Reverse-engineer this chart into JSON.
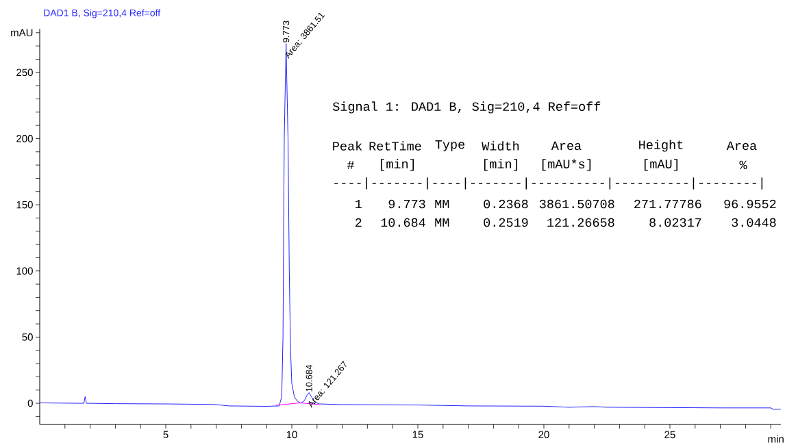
{
  "chart_data": {
    "type": "line",
    "title": "DAD1 B, Sig=210,4 Ref=off",
    "xlabel": "min",
    "xlim": [
      0,
      29.4
    ],
    "ylim": [
      -16,
      283
    ],
    "xticks": [
      {
        "value": 1,
        "label": null
      },
      {
        "value": 2,
        "label": null
      },
      {
        "value": 3,
        "label": null
      },
      {
        "value": 4,
        "label": null
      },
      5,
      {
        "value": 6,
        "label": null
      },
      {
        "value": 7,
        "label": null
      },
      {
        "value": 8,
        "label": null
      },
      {
        "value": 9,
        "label": null
      },
      10,
      {
        "value": 11,
        "label": null
      },
      {
        "value": 12,
        "label": null
      },
      {
        "value": 13,
        "label": null
      },
      {
        "value": 14,
        "label": null
      },
      15,
      {
        "value": 16,
        "label": null
      },
      {
        "value": 17,
        "label": null
      },
      {
        "value": 18,
        "label": null
      },
      {
        "value": 19,
        "label": null
      },
      20,
      {
        "value": 21,
        "label": null
      },
      {
        "value": 22,
        "label": null
      },
      {
        "value": 23,
        "label": null
      },
      {
        "value": 24,
        "label": null
      },
      25,
      {
        "value": 26,
        "label": null
      },
      {
        "value": 27,
        "label": null
      },
      {
        "value": 28,
        "label": null
      },
      {
        "value": 29,
        "label": null
      }
    ],
    "yticks": [
      {
        "value": -10,
        "label": null
      },
      0,
      {
        "value": 10,
        "label": null
      },
      {
        "value": 20,
        "label": null
      },
      {
        "value": 30,
        "label": null
      },
      {
        "value": 40,
        "label": null
      },
      50,
      {
        "value": 60,
        "label": null
      },
      {
        "value": 70,
        "label": null
      },
      {
        "value": 80,
        "label": null
      },
      {
        "value": 90,
        "label": null
      },
      100,
      {
        "value": 110,
        "label": null
      },
      {
        "value": 120,
        "label": null
      },
      {
        "value": 130,
        "label": null
      },
      {
        "value": 140,
        "label": null
      },
      150,
      {
        "value": 160,
        "label": null
      },
      {
        "value": 170,
        "label": null
      },
      {
        "value": 180,
        "label": null
      },
      {
        "value": 190,
        "label": null
      },
      200,
      {
        "value": 210,
        "label": null
      },
      {
        "value": 220,
        "label": null
      },
      {
        "value": 230,
        "label": null
      },
      {
        "value": 240,
        "label": null
      },
      250,
      {
        "value": 260,
        "label": null
      },
      {
        "value": 270,
        "label": null
      },
      {
        "value": 280,
        "label": "mAU"
      }
    ],
    "grid": false,
    "series": [
      {
        "color": "#2020ff",
        "x": [
          0,
          1.5,
          1.75,
          1.8,
          1.85,
          3,
          5,
          6.5,
          7,
          7.5,
          9,
          9.5,
          9.6,
          9.65,
          9.7,
          9.773,
          9.85,
          9.9,
          9.95,
          10.0,
          10.1,
          10.2,
          10.35,
          10.5,
          10.6,
          10.684,
          10.78,
          10.9,
          11.1,
          12,
          15,
          17,
          20,
          21,
          22,
          22.5,
          27,
          29,
          29.1,
          29.4
        ],
        "values": [
          0.3,
          0,
          0,
          5,
          0,
          -0.3,
          -0.5,
          -0.8,
          -1,
          -2,
          -2.3,
          -2,
          5,
          50,
          200,
          271.8,
          200,
          100,
          40,
          15,
          5,
          2,
          0,
          2,
          6,
          8,
          5,
          1,
          -0.5,
          -1,
          -1.3,
          -2,
          -2.2,
          -3,
          -2.5,
          -3,
          -3.5,
          -3.5,
          -4.5,
          -4.5
        ]
      },
      {
        "color": "#ff00ff",
        "x": [
          9.35,
          10.35,
          11.1
        ],
        "values": [
          -1.5,
          0.3,
          -1
        ]
      }
    ],
    "annotations": [
      "9.773",
      "Area: 3861.51",
      "10.684",
      "Area: 121.267",
      "Signal 1: DAD1 B, Sig=210,4 Ref=off",
      "Peak",
      "RetTime",
      "Type",
      "Width",
      "Area",
      "Height",
      "Area",
      "#",
      "[min]",
      "[min]",
      "[mAU*s]",
      "[mAU]",
      "%",
      "----|-------|----|-------|----------|----------|--------|",
      "1",
      "9.773",
      "MM",
      "0.2368",
      "3861.50708",
      "271.77786",
      "96.9552",
      "2",
      "10.684",
      "MM",
      "0.2519",
      "121.26658",
      "8.02317",
      "3.0448"
    ]
  }
}
